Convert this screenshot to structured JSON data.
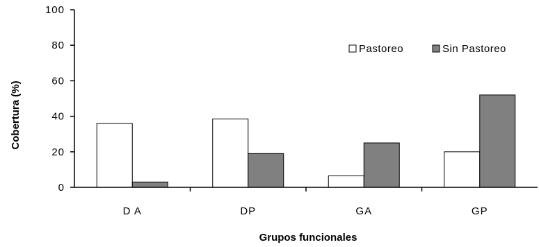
{
  "chart_data": {
    "type": "bar",
    "title": "",
    "xlabel": "Grupos funcionales",
    "ylabel": "Cobertura (%)",
    "ylim": [
      0,
      100
    ],
    "yticks": [
      "0",
      "20",
      "40",
      "60",
      "80",
      "100"
    ],
    "categories": [
      "D A",
      "DP",
      "GA",
      "GP"
    ],
    "series": [
      {
        "name": "Pastoreo",
        "values": [
          36,
          38.5,
          6.5,
          20
        ],
        "color": "#ffffff"
      },
      {
        "name": "Sin Pastoreo",
        "values": [
          3,
          19,
          25,
          52
        ],
        "color": "#808080"
      }
    ],
    "legend_position": "top-right",
    "grid": false
  }
}
